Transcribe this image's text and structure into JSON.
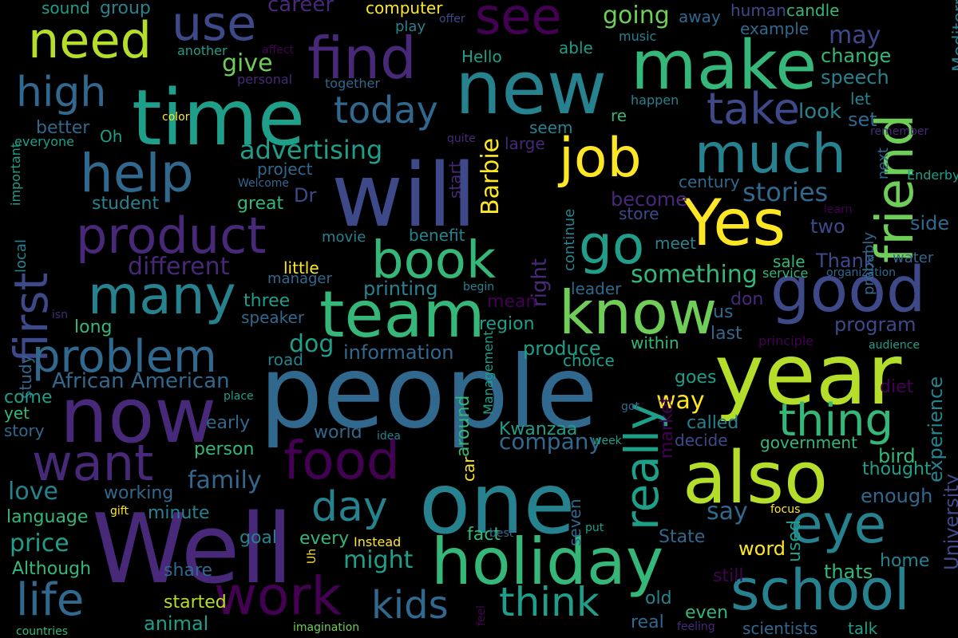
{
  "background": "#000000",
  "palette": [
    "#440154",
    "#482878",
    "#3e4989",
    "#31688e",
    "#26828e",
    "#1f9e89",
    "#35b779",
    "#6ece58",
    "#b5de2b",
    "#fde725"
  ],
  "words": [
    {
      "text": "people",
      "c": 3
    },
    {
      "text": "Well",
      "c": 1
    },
    {
      "text": "will",
      "c": 2
    },
    {
      "text": "year",
      "c": 8
    },
    {
      "text": "one",
      "c": 4
    },
    {
      "text": "time",
      "c": 5
    },
    {
      "text": "also",
      "c": 8
    },
    {
      "text": "now",
      "c": 1
    },
    {
      "text": "new",
      "c": 4
    },
    {
      "text": "holiday",
      "c": 6
    },
    {
      "text": "make",
      "c": 6
    },
    {
      "text": "team",
      "c": 6
    },
    {
      "text": "good",
      "c": 2
    },
    {
      "text": "Yes",
      "c": 9
    },
    {
      "text": "know",
      "c": 7
    },
    {
      "text": "job",
      "c": 9
    },
    {
      "text": "much",
      "c": 4
    },
    {
      "text": "school",
      "c": 4
    },
    {
      "text": "help",
      "c": 3
    },
    {
      "text": "product",
      "c": 1
    },
    {
      "text": "find",
      "c": 1
    },
    {
      "text": "many",
      "c": 4
    },
    {
      "text": "friend",
      "c": 7
    },
    {
      "text": "book",
      "c": 6
    },
    {
      "text": "eye",
      "c": 4
    },
    {
      "text": "go",
      "c": 5
    },
    {
      "text": "work",
      "c": 0
    },
    {
      "text": "want",
      "c": 1
    },
    {
      "text": "food",
      "c": 0
    },
    {
      "text": "need",
      "c": 8
    },
    {
      "text": "see",
      "c": 0
    },
    {
      "text": "really",
      "c": 5
    },
    {
      "text": "first",
      "c": 2
    },
    {
      "text": "problem",
      "c": 3
    },
    {
      "text": "thing",
      "c": 6
    },
    {
      "text": "use",
      "c": 2
    },
    {
      "text": "take",
      "c": 2
    },
    {
      "text": "life",
      "c": 3
    },
    {
      "text": "high",
      "c": 3
    },
    {
      "text": "think",
      "c": 5
    },
    {
      "text": "today",
      "c": 3
    },
    {
      "text": "day",
      "c": 4
    },
    {
      "text": "kids",
      "c": 3
    },
    {
      "text": "advertising",
      "c": 5
    },
    {
      "text": "different",
      "c": 1
    },
    {
      "text": "company",
      "c": 3
    },
    {
      "text": "stories",
      "c": 3
    },
    {
      "text": "something",
      "c": 6
    },
    {
      "text": "going",
      "c": 7
    },
    {
      "text": "might",
      "c": 5
    },
    {
      "text": "African American",
      "c": 3
    },
    {
      "text": "family",
      "c": 3
    },
    {
      "text": "way",
      "c": 9
    },
    {
      "text": "say",
      "c": 3
    },
    {
      "text": "experience",
      "c": 4
    },
    {
      "text": "Barbie",
      "c": 9
    },
    {
      "text": "give",
      "c": 7
    },
    {
      "text": "may",
      "c": 2
    },
    {
      "text": "dog",
      "c": 5
    },
    {
      "text": "right",
      "c": 1
    },
    {
      "text": "price",
      "c": 5
    },
    {
      "text": "love",
      "c": 4
    },
    {
      "text": "career",
      "c": 1
    },
    {
      "text": "University",
      "c": 2
    },
    {
      "text": "information",
      "c": 3
    },
    {
      "text": "printing",
      "c": 4
    },
    {
      "text": "produce",
      "c": 5
    },
    {
      "text": "program",
      "c": 2
    },
    {
      "text": "two",
      "c": 2
    },
    {
      "text": "Dr",
      "c": 2
    },
    {
      "text": "side",
      "c": 3
    },
    {
      "text": "become",
      "c": 1
    },
    {
      "text": "leader",
      "c": 3
    },
    {
      "text": "Thank",
      "c": 2
    },
    {
      "text": "speech",
      "c": 4
    },
    {
      "text": "change",
      "c": 6
    },
    {
      "text": "look",
      "c": 4
    },
    {
      "text": "set",
      "c": 3
    },
    {
      "text": "study",
      "c": 3
    },
    {
      "text": "goal",
      "c": 4
    },
    {
      "text": "person",
      "c": 6
    },
    {
      "text": "word",
      "c": 9
    },
    {
      "text": "thats",
      "c": 6
    },
    {
      "text": "home",
      "c": 4
    },
    {
      "text": "bird",
      "c": 6
    },
    {
      "text": "thought",
      "c": 5
    },
    {
      "text": "enough",
      "c": 3
    },
    {
      "text": "Mediterranean",
      "c": 4
    },
    {
      "text": "Although",
      "c": 6
    },
    {
      "text": "share",
      "c": 3
    },
    {
      "text": "animal",
      "c": 5
    },
    {
      "text": "started",
      "c": 8
    },
    {
      "text": "language",
      "c": 6
    },
    {
      "text": "working",
      "c": 3
    },
    {
      "text": "minute",
      "c": 4
    },
    {
      "text": "world",
      "c": 3
    },
    {
      "text": "every",
      "c": 6
    },
    {
      "text": "Kwanzaa",
      "c": 5
    },
    {
      "text": "around",
      "c": 6
    },
    {
      "text": "seven",
      "c": 3
    },
    {
      "text": "market",
      "c": 0
    },
    {
      "text": "State",
      "c": 3
    },
    {
      "text": "used",
      "c": 5
    },
    {
      "text": "still",
      "c": 0
    },
    {
      "text": "even",
      "c": 6
    },
    {
      "text": "real",
      "c": 3
    },
    {
      "text": "old",
      "c": 4
    },
    {
      "text": "talk",
      "c": 5
    },
    {
      "text": "scientists",
      "c": 3
    },
    {
      "text": "decide",
      "c": 2
    },
    {
      "text": "government",
      "c": 6
    },
    {
      "text": "called",
      "c": 4
    },
    {
      "text": "goes",
      "c": 5
    },
    {
      "text": "diet",
      "c": 0
    },
    {
      "text": "last",
      "c": 3
    },
    {
      "text": "us",
      "c": 3
    },
    {
      "text": "don",
      "c": 1
    },
    {
      "text": "within",
      "c": 6
    },
    {
      "text": "choice",
      "c": 5
    },
    {
      "text": "region",
      "c": 5
    },
    {
      "text": "mean",
      "c": 0
    },
    {
      "text": "meet",
      "c": 4
    },
    {
      "text": "store",
      "c": 2
    },
    {
      "text": "century",
      "c": 3
    },
    {
      "text": "sale",
      "c": 6
    },
    {
      "text": "water",
      "c": 3
    },
    {
      "text": "service",
      "c": 6
    },
    {
      "text": "organization",
      "c": 3
    },
    {
      "text": "probably",
      "c": 3
    },
    {
      "text": "next",
      "c": 3
    },
    {
      "text": "Enderby",
      "c": 5
    },
    {
      "text": "remember",
      "c": 1
    },
    {
      "text": "learn",
      "c": 0
    },
    {
      "text": "principle",
      "c": 0
    },
    {
      "text": "audience",
      "c": 5
    },
    {
      "text": "continue",
      "c": 4
    },
    {
      "text": "start",
      "c": 1
    },
    {
      "text": "large",
      "c": 1
    },
    {
      "text": "seem",
      "c": 4
    },
    {
      "text": "re",
      "c": 6
    },
    {
      "text": "happen",
      "c": 4
    },
    {
      "text": "let",
      "c": 4
    },
    {
      "text": "example",
      "c": 3
    },
    {
      "text": "human",
      "c": 2
    },
    {
      "text": "candle",
      "c": 6
    },
    {
      "text": "away",
      "c": 3
    },
    {
      "text": "music",
      "c": 4
    },
    {
      "text": "able",
      "c": 5
    },
    {
      "text": "Hello",
      "c": 5
    },
    {
      "text": "play",
      "c": 4
    },
    {
      "text": "computer",
      "c": 9
    },
    {
      "text": "offer",
      "c": 2
    },
    {
      "text": "group",
      "c": 4
    },
    {
      "text": "sound",
      "c": 5
    },
    {
      "text": "affect",
      "c": 0
    },
    {
      "text": "another",
      "c": 5
    },
    {
      "text": "personal",
      "c": 1
    },
    {
      "text": "together",
      "c": 3
    },
    {
      "text": "color",
      "c": 9
    },
    {
      "text": "Oh",
      "c": 5
    },
    {
      "text": "better",
      "c": 3
    },
    {
      "text": "everyone",
      "c": 5
    },
    {
      "text": "quite",
      "c": 1
    },
    {
      "text": "Welcome",
      "c": 3
    },
    {
      "text": "project",
      "c": 3
    },
    {
      "text": "student",
      "c": 4
    },
    {
      "text": "great",
      "c": 6
    },
    {
      "text": "important",
      "c": 5
    },
    {
      "text": "local",
      "c": 4
    },
    {
      "text": "benefit",
      "c": 4
    },
    {
      "text": "movie",
      "c": 4
    },
    {
      "text": "manager",
      "c": 3
    },
    {
      "text": "little",
      "c": 9
    },
    {
      "text": "three",
      "c": 5
    },
    {
      "text": "speaker",
      "c": 3
    },
    {
      "text": "long",
      "c": 6
    },
    {
      "text": "isn",
      "c": 1
    },
    {
      "text": "begin",
      "c": 4
    },
    {
      "text": "road",
      "c": 4
    },
    {
      "text": "come",
      "c": 5
    },
    {
      "text": "yet",
      "c": 6
    },
    {
      "text": "story",
      "c": 3
    },
    {
      "text": "early",
      "c": 3
    },
    {
      "text": "place",
      "c": 5
    },
    {
      "text": "idea",
      "c": 4
    },
    {
      "text": "Management",
      "c": 5
    },
    {
      "text": "week",
      "c": 5
    },
    {
      "text": "got",
      "c": 3
    },
    {
      "text": "car",
      "c": 9
    },
    {
      "text": "fact",
      "c": 6
    },
    {
      "text": "focus",
      "c": 9
    },
    {
      "text": "best",
      "c": 3
    },
    {
      "text": "put",
      "c": 5
    },
    {
      "text": "gift",
      "c": 9
    },
    {
      "text": "Instead",
      "c": 9
    },
    {
      "text": "Uh",
      "c": 9
    },
    {
      "text": "feeling",
      "c": 1
    },
    {
      "text": "feel",
      "c": 0
    },
    {
      "text": "imagination",
      "c": 7
    },
    {
      "text": "countries",
      "c": 6
    }
  ]
}
